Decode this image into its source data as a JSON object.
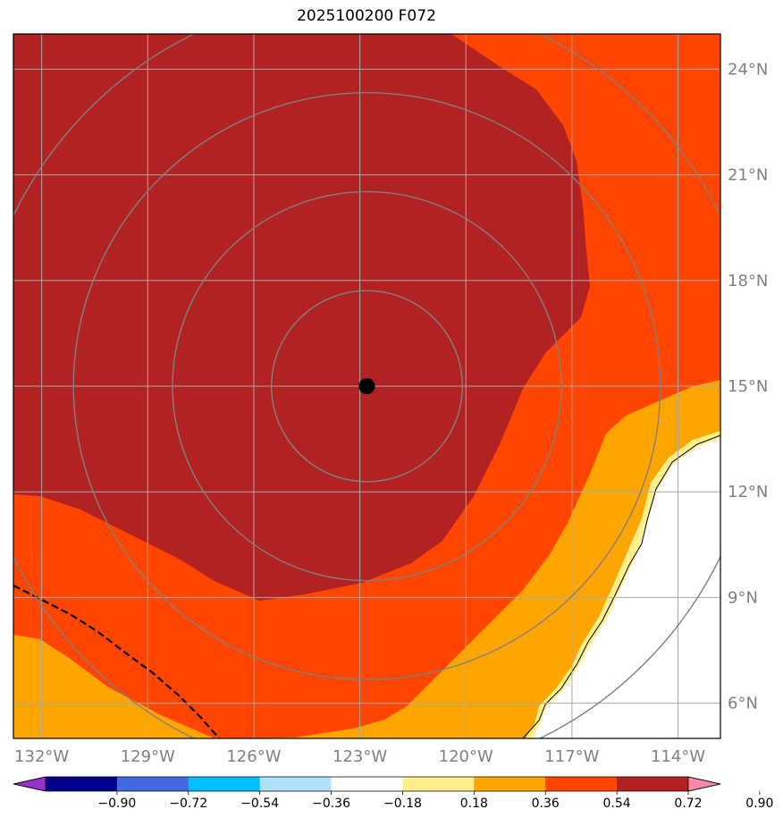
{
  "title": "2025100200 F072",
  "axes": {
    "lon_labels": [
      "132°W",
      "129°W",
      "126°W",
      "123°W",
      "120°W",
      "117°W",
      "114°W"
    ],
    "lon_values": [
      -132,
      -129,
      -126,
      -123,
      -120,
      -117,
      -114
    ],
    "lat_labels": [
      "24°N",
      "21°N",
      "18°N",
      "15°N",
      "12°N",
      "9°N",
      "6°N"
    ],
    "lat_values": [
      24,
      21,
      18,
      15,
      12,
      9,
      6
    ],
    "lon_range": [
      -132.8,
      -112.8
    ],
    "lat_range": [
      5.0,
      25.0
    ]
  },
  "storm_center": {
    "lon": -122.8,
    "lat": 15.0,
    "marker": "filled-circle"
  },
  "range_rings_deg": [
    2.7,
    5.5,
    8.3,
    11.1
  ],
  "colorbar": {
    "tick_labels": [
      "−0.90",
      "−0.72",
      "−0.54",
      "−0.36",
      "−0.18",
      "0.18",
      "0.36",
      "0.54",
      "0.72",
      "0.90"
    ],
    "colors": [
      "#9932cc",
      "#00008b",
      "#4169e1",
      "#00bfff",
      "#b0e2ff",
      "#ffffff",
      "#fff08c",
      "#ffa500",
      "#ff4500",
      "#b22222",
      "#ff88aa"
    ]
  },
  "field_colors": {
    "core": "#b22222",
    "band_072_090": "#ff4500",
    "band_054_072": "#ffa500",
    "band_036_054": "#fff08c",
    "land": "#ffffff"
  }
}
